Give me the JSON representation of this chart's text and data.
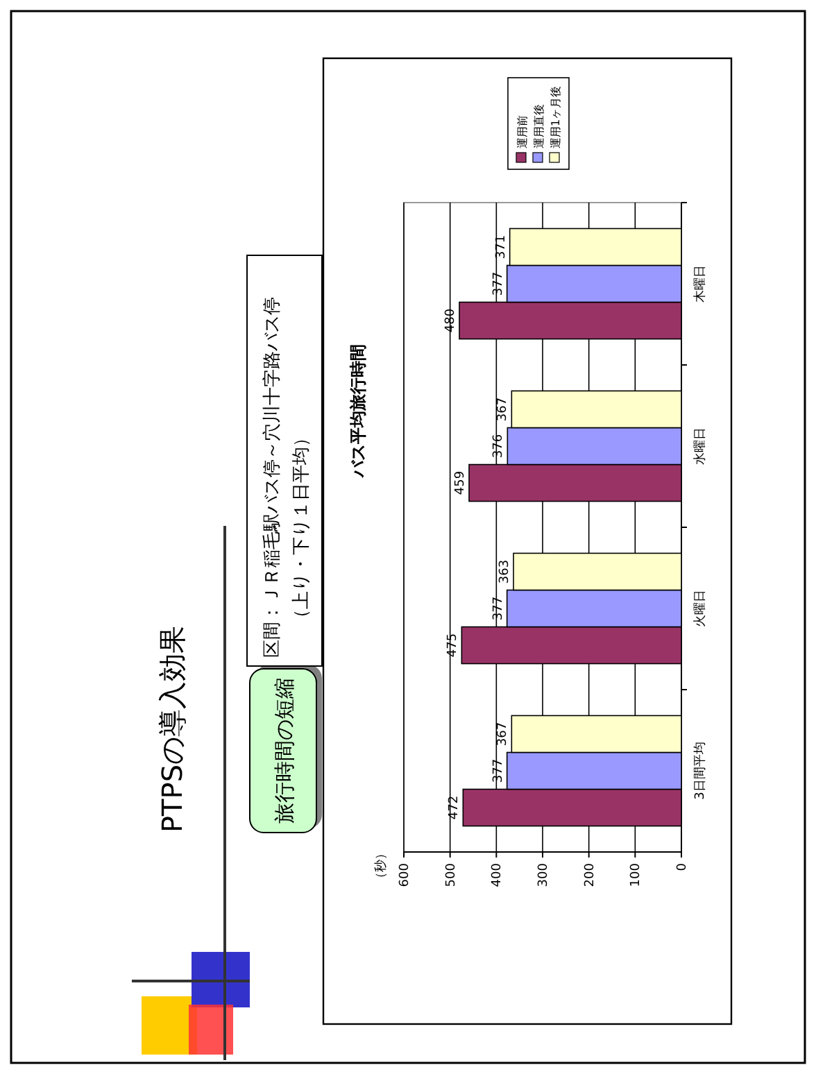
{
  "chart_data": {
    "type": "bar",
    "orientation": "horizontal",
    "title": "バス平均旅行時間",
    "categories": [
      "木曜日",
      "水曜日",
      "火曜日",
      "3日間平均"
    ],
    "series": [
      {
        "name": "運用前",
        "color": "#993366",
        "values": [
          480,
          459,
          475,
          472
        ]
      },
      {
        "name": "運用直後",
        "color": "#9999ff",
        "values": [
          377,
          376,
          377,
          377
        ]
      },
      {
        "name": "運用1ヶ月後",
        "color": "#ffffcc",
        "values": [
          371,
          367,
          363,
          367
        ]
      }
    ],
    "xlim": [
      600,
      0
    ],
    "xticks": [
      600,
      500,
      400,
      300,
      200,
      100,
      0
    ],
    "grid": "x",
    "legend": "top",
    "data_labels": true,
    "annotations": [
      "PTPSの導入効果",
      "旅行時間の短縮",
      "区間：ＪＲ稲毛駅バス停～穴川十字路バス停",
      "（上り・下り１日平均）",
      "（秒）"
    ]
  }
}
